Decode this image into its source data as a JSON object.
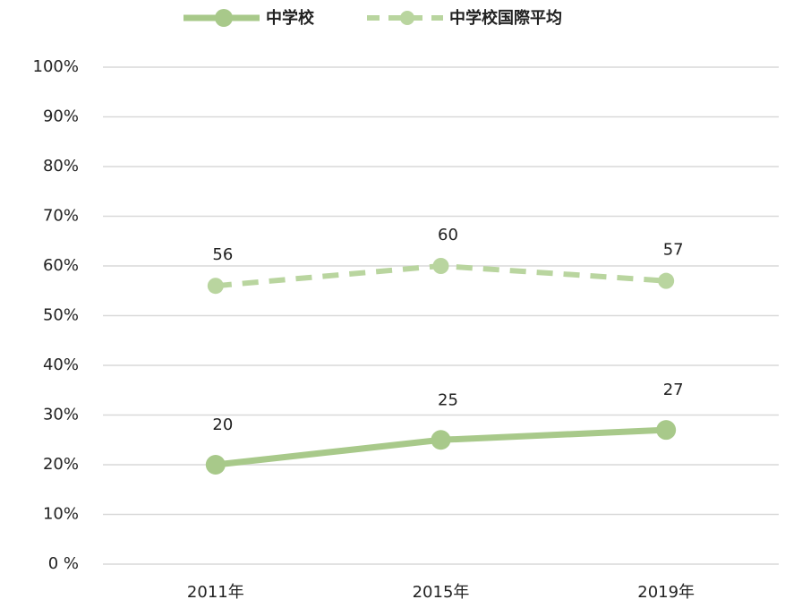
{
  "chart_data": {
    "type": "line",
    "categories": [
      "2011年",
      "2015年",
      "2019年"
    ],
    "series": [
      {
        "name": "中学校",
        "color": "#a8c98a",
        "dash": false,
        "values": [
          20,
          25,
          27
        ]
      },
      {
        "name": "中学校国際平均",
        "color": "#b9d59f",
        "dash": true,
        "values": [
          56,
          60,
          57
        ]
      }
    ],
    "ylim": [
      0,
      100
    ],
    "yticks": [
      {
        "value": 0,
        "label": "0 %"
      },
      {
        "value": 10,
        "label": "10%"
      },
      {
        "value": 20,
        "label": "20%"
      },
      {
        "value": 30,
        "label": "30%"
      },
      {
        "value": 40,
        "label": "40%"
      },
      {
        "value": 50,
        "label": "50%"
      },
      {
        "value": 60,
        "label": "60%"
      },
      {
        "value": 70,
        "label": "70%"
      },
      {
        "value": 80,
        "label": "80%"
      },
      {
        "value": 90,
        "label": "90%"
      },
      {
        "value": 100,
        "label": "100%"
      }
    ],
    "grid": true,
    "legend": "top"
  }
}
